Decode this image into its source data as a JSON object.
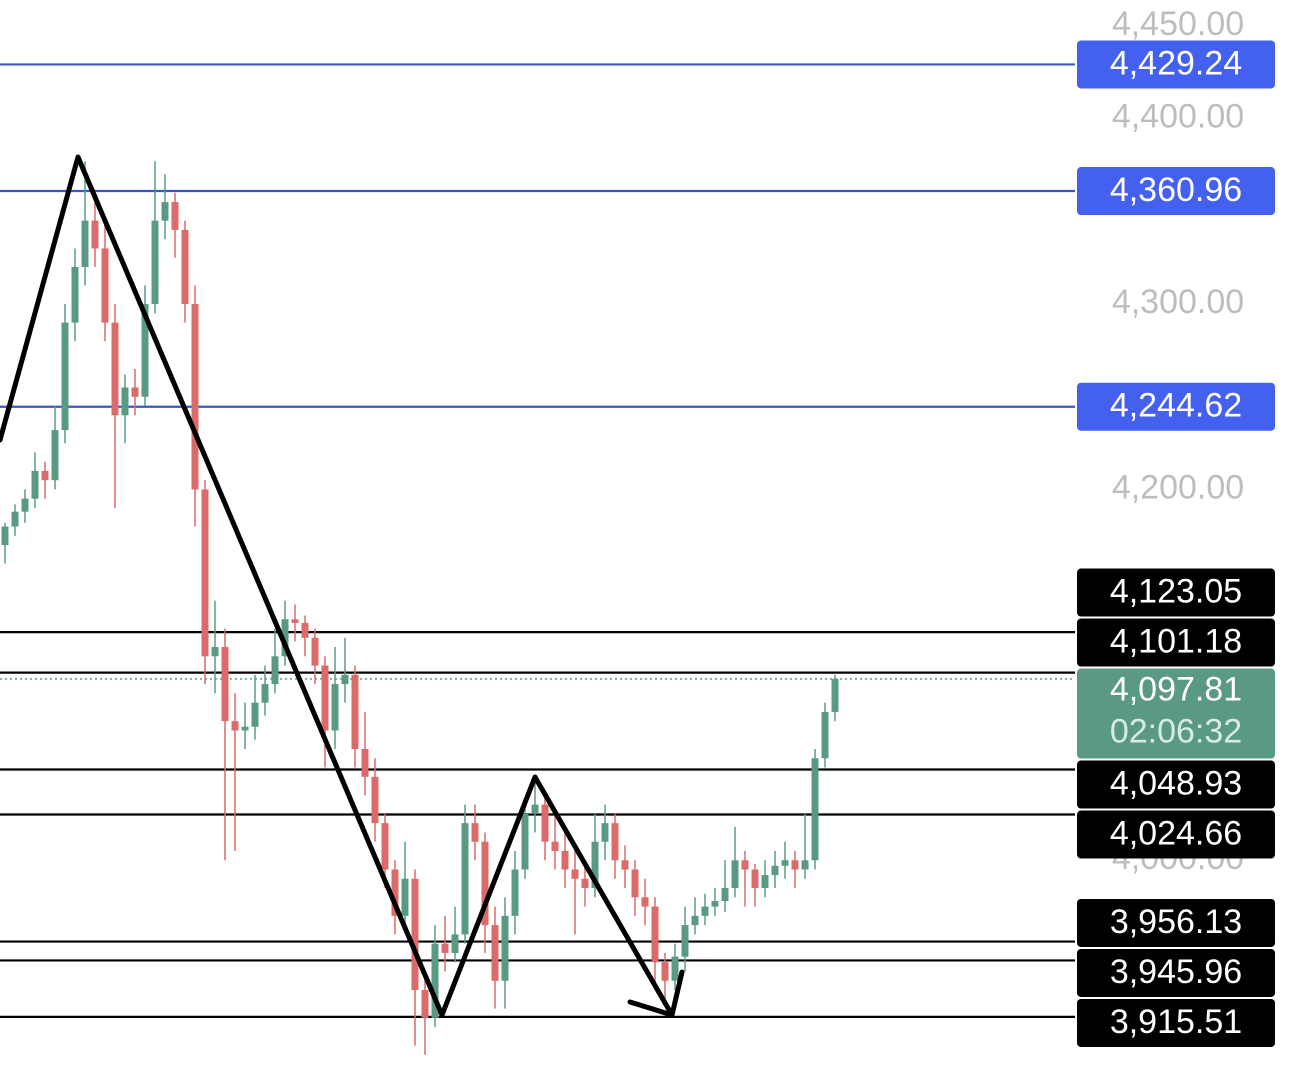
{
  "chart_data": {
    "type": "candlestick",
    "ylim": [
      3882,
      4464
    ],
    "yticks": [
      {
        "value": 4450,
        "label": "4,450.00"
      },
      {
        "value": 4400,
        "label": "4,400.00"
      },
      {
        "value": 4300,
        "label": "4,300.00"
      },
      {
        "value": 4200,
        "label": "4,200.00"
      },
      {
        "value": 4000,
        "label": "4,000.00"
      }
    ],
    "up_color": "#5a9a82",
    "down_color": "#db6a6a",
    "ohlc": [
      [
        4170,
        4182,
        4160,
        4180
      ],
      [
        4180,
        4192,
        4175,
        4188
      ],
      [
        4188,
        4200,
        4182,
        4195
      ],
      [
        4195,
        4220,
        4190,
        4210
      ],
      [
        4210,
        4215,
        4195,
        4205
      ],
      [
        4205,
        4245,
        4200,
        4232
      ],
      [
        4232,
        4300,
        4225,
        4290
      ],
      [
        4290,
        4330,
        4280,
        4320
      ],
      [
        4320,
        4377,
        4310,
        4345
      ],
      [
        4345,
        4360,
        4320,
        4330
      ],
      [
        4330,
        4345,
        4280,
        4290
      ],
      [
        4290,
        4300,
        4190,
        4240
      ],
      [
        4240,
        4262,
        4225,
        4255
      ],
      [
        4255,
        4265,
        4240,
        4250
      ],
      [
        4250,
        4310,
        4245,
        4300
      ],
      [
        4300,
        4377,
        4295,
        4345
      ],
      [
        4345,
        4370,
        4335,
        4355
      ],
      [
        4355,
        4360,
        4325,
        4340
      ],
      [
        4340,
        4345,
        4290,
        4300
      ],
      [
        4300,
        4310,
        4180,
        4200
      ],
      [
        4200,
        4205,
        4095,
        4110
      ],
      [
        4110,
        4140,
        4090,
        4115
      ],
      [
        4115,
        4125,
        4000,
        4075
      ],
      [
        4075,
        4090,
        4005,
        4070
      ],
      [
        4070,
        4085,
        4060,
        4072
      ],
      [
        4072,
        4100,
        4065,
        4085
      ],
      [
        4085,
        4105,
        4078,
        4095
      ],
      [
        4095,
        4125,
        4090,
        4110
      ],
      [
        4110,
        4140,
        4105,
        4130
      ],
      [
        4130,
        4138,
        4118,
        4128
      ],
      [
        4128,
        4132,
        4110,
        4120
      ],
      [
        4120,
        4125,
        4095,
        4105
      ],
      [
        4105,
        4110,
        4050,
        4070
      ],
      [
        4070,
        4115,
        4060,
        4095
      ],
      [
        4095,
        4120,
        4085,
        4100
      ],
      [
        4100,
        4105,
        4050,
        4060
      ],
      [
        4060,
        4080,
        4035,
        4045
      ],
      [
        4045,
        4055,
        4010,
        4020
      ],
      [
        4020,
        4025,
        3985,
        3995
      ],
      [
        3995,
        4000,
        3960,
        3970
      ],
      [
        3970,
        4010,
        3965,
        3990
      ],
      [
        3990,
        3995,
        3900,
        3930
      ],
      [
        3930,
        3940,
        3895,
        3915
      ],
      [
        3915,
        3965,
        3910,
        3955
      ],
      [
        3955,
        3970,
        3940,
        3950
      ],
      [
        3950,
        3975,
        3945,
        3960
      ],
      [
        3960,
        4030,
        3955,
        4020
      ],
      [
        4020,
        4030,
        4000,
        4010
      ],
      [
        4010,
        4015,
        3950,
        3965
      ],
      [
        3965,
        3975,
        3920,
        3935
      ],
      [
        3935,
        3980,
        3920,
        3970
      ],
      [
        3970,
        4005,
        3960,
        3995
      ],
      [
        3995,
        4030,
        3990,
        4025
      ],
      [
        4025,
        4045,
        4015,
        4030
      ],
      [
        4030,
        4035,
        4000,
        4010
      ],
      [
        4010,
        4025,
        3995,
        4005
      ],
      [
        4005,
        4015,
        3985,
        3995
      ],
      [
        3995,
        4005,
        3960,
        3990
      ],
      [
        3990,
        4000,
        3975,
        3985
      ],
      [
        3985,
        4025,
        3980,
        4010
      ],
      [
        4010,
        4030,
        4000,
        4020
      ],
      [
        4020,
        4025,
        3990,
        4000
      ],
      [
        4000,
        4008,
        3985,
        3995
      ],
      [
        3995,
        4000,
        3970,
        3980
      ],
      [
        3980,
        3990,
        3965,
        3975
      ],
      [
        3975,
        3980,
        3930,
        3945
      ],
      [
        3945,
        3950,
        3925,
        3935
      ],
      [
        3935,
        3955,
        3930,
        3948
      ],
      [
        3948,
        3975,
        3940,
        3965
      ],
      [
        3965,
        3980,
        3960,
        3970
      ],
      [
        3970,
        3982,
        3965,
        3975
      ],
      [
        3975,
        3985,
        3970,
        3978
      ],
      [
        3978,
        4000,
        3972,
        3985
      ],
      [
        3985,
        4018,
        3980,
        4000
      ],
      [
        4000,
        4005,
        3975,
        3995
      ],
      [
        3995,
        3998,
        3975,
        3985
      ],
      [
        3985,
        4000,
        3980,
        3992
      ],
      [
        3992,
        4005,
        3985,
        3997
      ],
      [
        3997,
        4010,
        3990,
        4000
      ],
      [
        4000,
        4005,
        3985,
        3995
      ],
      [
        3995,
        4025,
        3990,
        4000
      ],
      [
        4000,
        4060,
        3995,
        4055
      ],
      [
        4055,
        4085,
        4050,
        4080
      ],
      [
        4080,
        4100,
        4075,
        4097.81
      ]
    ],
    "levels": [
      {
        "value": 4429.24,
        "label": "4,429.24",
        "color": "#4361ee",
        "line_color": "#3b55c9"
      },
      {
        "value": 4360.96,
        "label": "4,360.96",
        "color": "#4361ee",
        "line_color": "#3b55c9"
      },
      {
        "value": 4244.62,
        "label": "4,244.62",
        "color": "#4361ee",
        "line_color": "#3b55c9"
      },
      {
        "value": 4123.05,
        "label": "4,123.05",
        "color": "#000000",
        "line_color": "#000000"
      },
      {
        "value": 4101.18,
        "label": "4,101.18",
        "color": "#000000",
        "line_color": "#000000"
      },
      {
        "value": 4048.93,
        "label": "4,048.93",
        "color": "#000000",
        "line_color": "#000000"
      },
      {
        "value": 4024.66,
        "label": "4,024.66",
        "color": "#000000",
        "line_color": "#000000"
      },
      {
        "value": 3956.13,
        "label": "3,956.13",
        "color": "#000000",
        "line_color": "#000000"
      },
      {
        "value": 3945.96,
        "label": "3,945.96",
        "color": "#000000",
        "line_color": "#000000"
      },
      {
        "value": 3915.51,
        "label": "3,915.51",
        "color": "#000000",
        "line_color": "#000000"
      }
    ],
    "current_price": {
      "value": 4097.81,
      "label": "4,097.81",
      "countdown": "02:06:32",
      "color": "#5a9a82"
    }
  }
}
